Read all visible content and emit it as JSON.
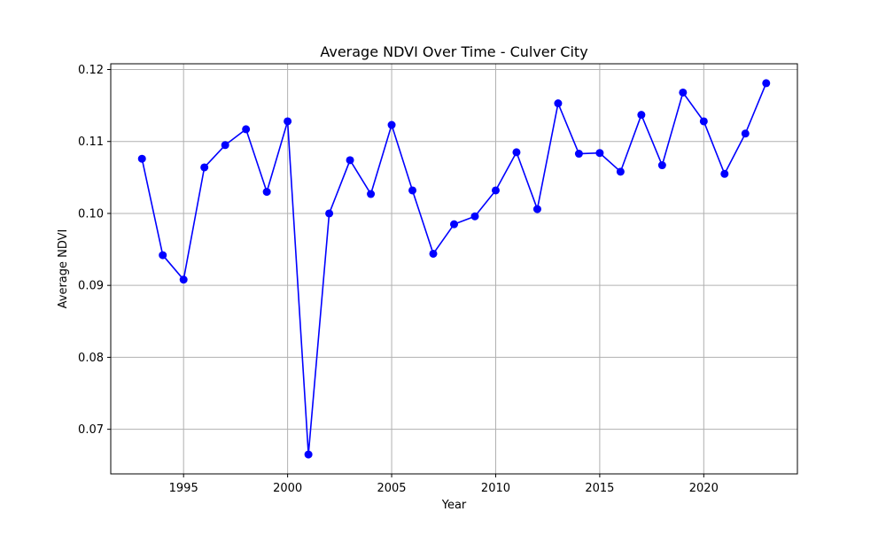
{
  "chart_data": {
    "type": "line",
    "title": "Average NDVI Over Time - Culver City",
    "xlabel": "Year",
    "ylabel": "Average NDVI",
    "xlim": [
      1991.5,
      2024.5
    ],
    "ylim": [
      0.0638,
      0.1208
    ],
    "xticks": [
      1995,
      2000,
      2005,
      2010,
      2015,
      2020
    ],
    "yticks": [
      0.07,
      0.08,
      0.09,
      0.1,
      0.11,
      0.12
    ],
    "ytick_labels": [
      "0.07",
      "0.08",
      "0.09",
      "0.10",
      "0.11",
      "0.12"
    ],
    "grid": true,
    "line_color": "#0000ff",
    "marker": "circle",
    "series": [
      {
        "x": [
          1993,
          1994,
          1995,
          1996,
          1997,
          1998,
          1999,
          2000,
          2001,
          2002,
          2003,
          2004,
          2005,
          2006,
          2007,
          2008,
          2009,
          2010,
          2011,
          2012,
          2013,
          2014,
          2015,
          2016,
          2017,
          2018,
          2019,
          2020,
          2021,
          2022,
          2023
        ],
        "values": [
          0.1076,
          0.0942,
          0.0908,
          0.1064,
          0.1095,
          0.1117,
          0.103,
          0.1128,
          0.0665,
          0.1,
          0.1074,
          0.1027,
          0.1123,
          0.1032,
          0.0944,
          0.0985,
          0.0996,
          0.1032,
          0.1085,
          0.1006,
          0.1153,
          0.1083,
          0.1084,
          0.1058,
          0.1137,
          0.1067,
          0.1168,
          0.1128,
          0.1055,
          0.1111,
          0.1181
        ]
      }
    ]
  }
}
